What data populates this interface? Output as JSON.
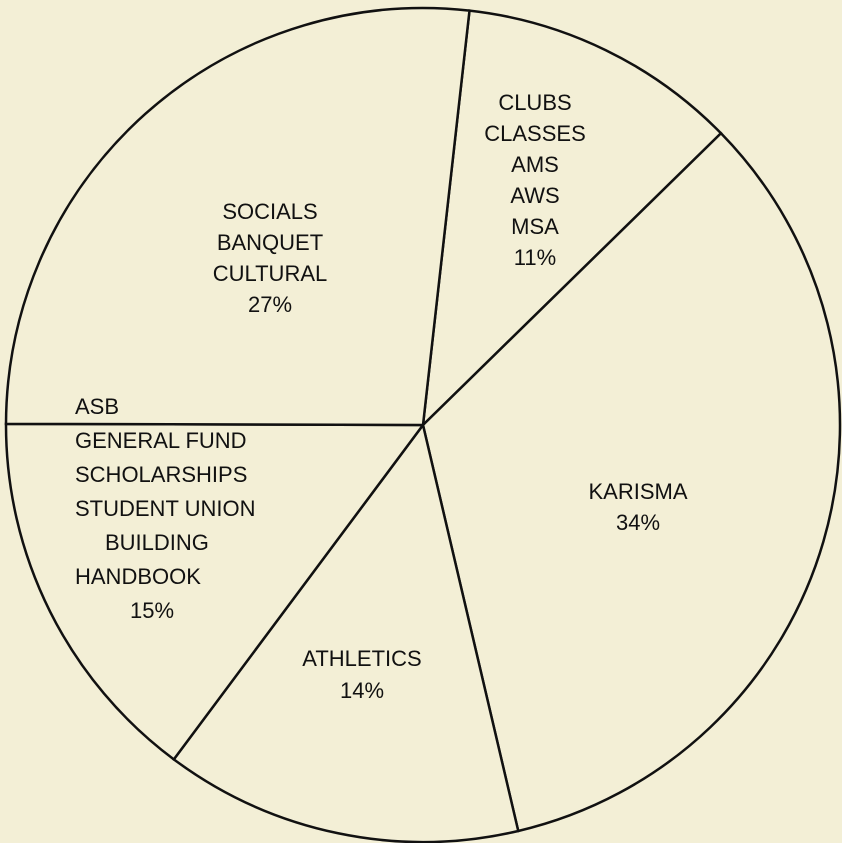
{
  "chart_data": {
    "type": "pie",
    "categories": [
      [
        "CLUBS",
        "CLASSES",
        "AMS",
        "AWS",
        "MSA"
      ],
      [
        "KARISMA"
      ],
      [
        "ATHLETICS"
      ],
      [
        "ASB",
        "GENERAL FUND",
        "SCHOLARSHIPS",
        "STUDENT UNION",
        "BUILDING",
        "HANDBOOK"
      ],
      [
        "SOCIALS",
        "BANQUET",
        "CULTURAL"
      ]
    ],
    "values": [
      11,
      34,
      14,
      15,
      27
    ],
    "value_labels": [
      "11%",
      "34%",
      "14%",
      "15%",
      "27%"
    ],
    "color": "#f3efd6"
  }
}
